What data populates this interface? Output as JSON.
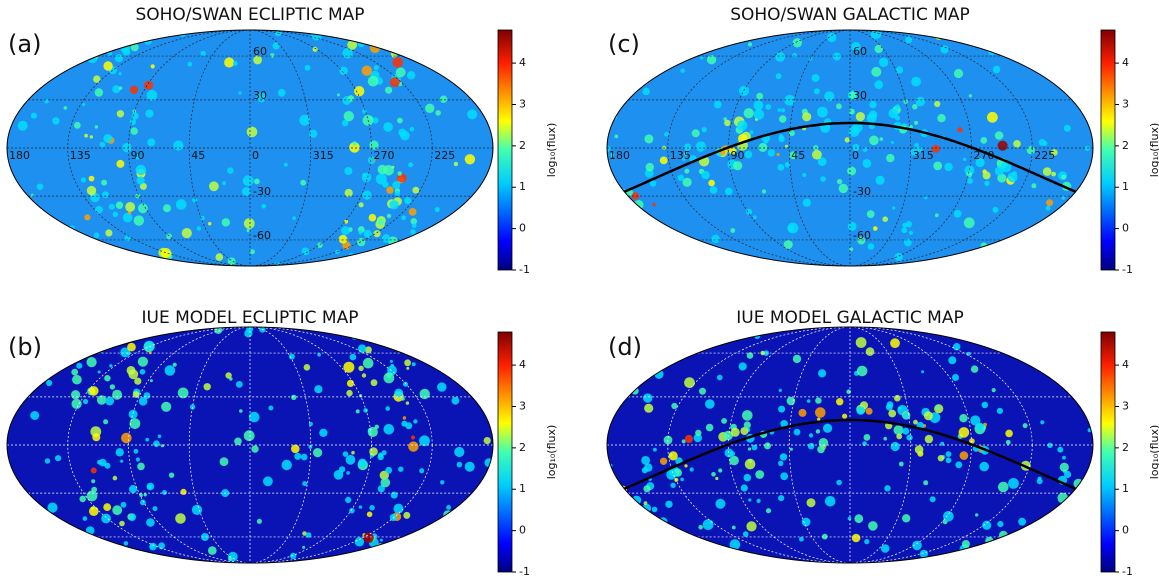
{
  "panels": [
    {
      "label": "(a)",
      "title": "SOHO/SWAN ECLIPTIC MAP",
      "lon_labels": [
        "180",
        "135",
        "90",
        "45",
        "0",
        "315",
        "270",
        "225"
      ],
      "lat_labels": [
        "60",
        "30",
        "-30",
        "-60"
      ],
      "colorbar": {
        "label": "log₁₀(flux)",
        "lim": [
          -1,
          4.8
        ],
        "ticks": [
          -1,
          0,
          1,
          2,
          3,
          4
        ]
      }
    },
    {
      "label": "(b)",
      "title": "IUE MODEL ECLIPTIC MAP",
      "colorbar": {
        "label": "log₁₀(flux)",
        "lim": [
          -1,
          4.8
        ],
        "ticks": [
          -1,
          0,
          1,
          2,
          3,
          4
        ]
      }
    },
    {
      "label": "(c)",
      "title": "SOHO/SWAN GALACTIC MAP",
      "lon_labels": [
        "180",
        "135",
        "90",
        "45",
        "0",
        "315",
        "270",
        "225"
      ],
      "lat_labels": [
        "60",
        "30",
        "-30",
        "-60"
      ],
      "colorbar": {
        "label": "log₁₀(flux)",
        "lim": [
          -1,
          4.8
        ],
        "ticks": [
          -1,
          0,
          1,
          2,
          3,
          4
        ]
      }
    },
    {
      "label": "(d)",
      "title": "IUE MODEL GALACTIC MAP",
      "colorbar": {
        "label": "log₁₀(flux)",
        "lim": [
          -1,
          4.8
        ],
        "ticks": [
          -1,
          0,
          1,
          2,
          3,
          4
        ]
      }
    }
  ]
}
